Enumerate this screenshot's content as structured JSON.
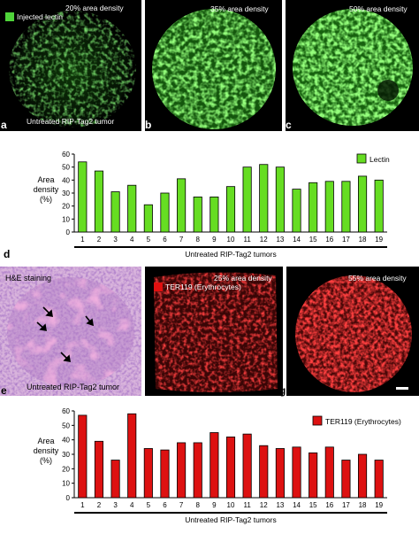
{
  "figure": {
    "panel_a": {
      "letter": "a",
      "density": "20% area density",
      "legend": "Injected lectin",
      "caption": "Untreated RIP-Tag2 tumor",
      "legend_color": "#4fd43a"
    },
    "panel_b": {
      "letter": "b",
      "density": "35% area density"
    },
    "panel_c": {
      "letter": "c",
      "density": "50% area density"
    },
    "panel_d": {
      "letter": "d"
    },
    "panel_e": {
      "letter": "e",
      "heading": "H&E staining",
      "caption": "Untreated RIP-Tag2 tumor"
    },
    "panel_f": {
      "letter": "f",
      "density": "25% area density",
      "legend": "TER119 (Erythrocytes)",
      "legend_color": "#e01010"
    },
    "panel_g": {
      "letter": "g",
      "density": "55% area density"
    }
  },
  "colors": {
    "lectin": "#66dd22",
    "ter119": "#dd1111"
  },
  "chart_data": [
    {
      "type": "bar",
      "ylabel_lines": [
        "Area",
        "density",
        "(%)"
      ],
      "xlabel": "Untreated RIP-Tag2 tumors",
      "legend": "Lectin",
      "ylim": [
        0,
        60
      ],
      "yticks": [
        0,
        10,
        20,
        30,
        40,
        50,
        60
      ],
      "categories": [
        "1",
        "2",
        "3",
        "4",
        "5",
        "6",
        "7",
        "8",
        "9",
        "10",
        "11",
        "12",
        "13",
        "14",
        "15",
        "16",
        "17",
        "18",
        "19"
      ],
      "series": [
        {
          "name": "Lectin",
          "values": [
            54,
            47,
            31,
            36,
            21,
            30,
            41,
            27,
            27,
            35,
            50,
            52,
            50,
            33,
            38,
            39,
            39,
            43,
            40
          ]
        }
      ]
    },
    {
      "type": "bar",
      "ylabel_lines": [
        "Area",
        "density",
        "(%)"
      ],
      "xlabel": "Untreated RIP-Tag2 tumors",
      "legend": "TER119 (Erythrocytes)",
      "ylim": [
        0,
        60
      ],
      "yticks": [
        0,
        10,
        20,
        30,
        40,
        50,
        60
      ],
      "categories": [
        "1",
        "2",
        "3",
        "4",
        "5",
        "6",
        "7",
        "8",
        "9",
        "10",
        "11",
        "12",
        "13",
        "14",
        "15",
        "16",
        "17",
        "18",
        "19"
      ],
      "series": [
        {
          "name": "TER119 (Erythrocytes)",
          "values": [
            57,
            39,
            26,
            58,
            34,
            33,
            38,
            38,
            45,
            42,
            44,
            36,
            34,
            35,
            31,
            35,
            26,
            30,
            26
          ]
        }
      ]
    }
  ]
}
